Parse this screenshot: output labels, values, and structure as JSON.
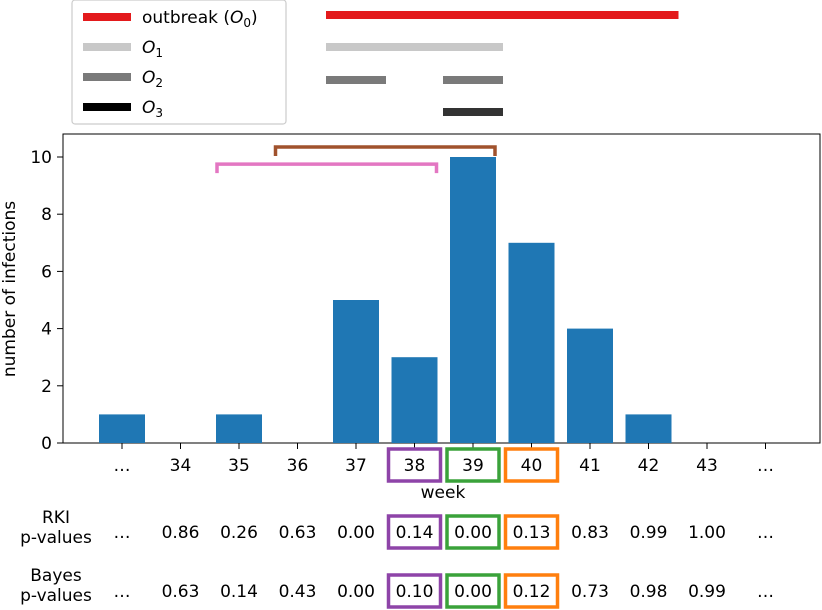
{
  "legend": {
    "items": [
      {
        "label": "outbreak (",
        "sym": "O",
        "sub": "0",
        "suffix": ")",
        "color": "#e31a1c"
      },
      {
        "label": "",
        "sym": "O",
        "sub": "1",
        "suffix": "",
        "color": "#c8c8c8"
      },
      {
        "label": "",
        "sym": "O",
        "sub": "2",
        "suffix": "",
        "color": "#7a7a7a"
      },
      {
        "label": "",
        "sym": "O",
        "sub": "3",
        "suffix": "",
        "color": "#000000"
      }
    ]
  },
  "chart_data": {
    "type": "bar",
    "categories": [
      "…",
      "34",
      "35",
      "36",
      "37",
      "38",
      "39",
      "40",
      "41",
      "42",
      "43",
      "…"
    ],
    "values": [
      1,
      0,
      1,
      0,
      5,
      3,
      10,
      7,
      4,
      1,
      0,
      0
    ],
    "bar_color": "#1f77b4",
    "xlabel": "week",
    "ylabel": "number of infections",
    "ylim": [
      0,
      10.8
    ],
    "yticks": [
      0,
      2,
      4,
      6,
      8,
      10
    ],
    "highlight_boxes": [
      {
        "category_index": 5,
        "color": "#8e44a8"
      },
      {
        "category_index": 6,
        "color": "#3aa23a"
      },
      {
        "category_index": 7,
        "color": "#ff7f0e"
      }
    ],
    "brackets": [
      {
        "from_index": 2,
        "to_index": 5,
        "value": 9.75,
        "color": "#e377c2"
      },
      {
        "from_index": 3,
        "to_index": 6,
        "value": 10.35,
        "color": "#a0522d"
      }
    ],
    "outbreak_periods": [
      {
        "name": "O0",
        "from_index": 4,
        "to_index": 9,
        "color": "#e31a1c"
      },
      {
        "name": "O1",
        "from_index": 4,
        "to_index": 6,
        "color": "#c8c8c8"
      },
      {
        "name": "O2",
        "from_index": 4,
        "to_index": 4,
        "color": "#7a7a7a"
      },
      {
        "name": "O2",
        "from_index": 6,
        "to_index": 6,
        "color": "#7a7a7a"
      },
      {
        "name": "O3",
        "from_index": 6,
        "to_index": 6,
        "color": "#333333"
      }
    ]
  },
  "pvalues": {
    "rki": {
      "label_line1": "RKI",
      "label_line2": "p-values",
      "values": [
        "…",
        "0.86",
        "0.26",
        "0.63",
        "0.00",
        "0.14",
        "0.00",
        "0.13",
        "0.83",
        "0.99",
        "1.00",
        "…"
      ]
    },
    "bayes": {
      "label_line1": "Bayes",
      "label_line2": "p-values",
      "values": [
        "…",
        "0.63",
        "0.14",
        "0.43",
        "0.00",
        "0.10",
        "0.00",
        "0.12",
        "0.73",
        "0.98",
        "0.99",
        "…"
      ]
    }
  }
}
